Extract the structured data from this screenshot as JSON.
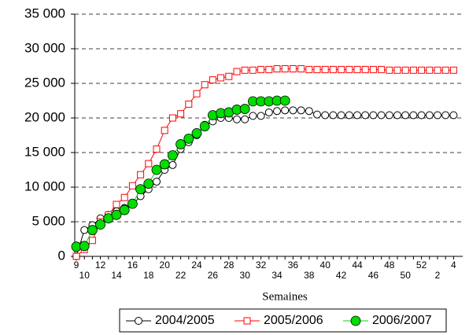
{
  "chart_data": {
    "type": "line",
    "x_label": "Semaines",
    "categories": [
      "9",
      "10",
      null,
      "12",
      null,
      "14",
      null,
      "16",
      null,
      "18",
      null,
      "20",
      null,
      "22",
      null,
      "24",
      null,
      "26",
      null,
      "28",
      null,
      "30",
      null,
      "32",
      null,
      "34",
      null,
      "36",
      null,
      "38",
      null,
      "40",
      null,
      "42",
      null,
      "44",
      null,
      "46",
      null,
      "48",
      null,
      "50",
      null,
      "52",
      null,
      "2",
      null,
      "4"
    ],
    "series": [
      {
        "name": "2004/2005",
        "color": "#000000",
        "marker": "circle",
        "values": [
          0,
          3800,
          4500,
          5500,
          6000,
          6500,
          7000,
          7500,
          8700,
          9700,
          10800,
          12500,
          13200,
          15500,
          16500,
          17500,
          19000,
          19500,
          20000,
          20000,
          19800,
          19800,
          20300,
          20300,
          20800,
          21000,
          21100,
          21100,
          21100,
          21000,
          20500,
          20400,
          20400,
          20400,
          20400,
          20400,
          20400,
          20400,
          20400,
          20400,
          20400,
          20400,
          20400,
          20400,
          20400,
          20400,
          20400,
          20400
        ]
      },
      {
        "name": "2005/2006",
        "color": "#ff0000",
        "marker": "square",
        "values": [
          0,
          1000,
          2300,
          5000,
          6000,
          7500,
          8500,
          10200,
          11800,
          13400,
          15500,
          18200,
          20000,
          20600,
          22000,
          23500,
          24800,
          25500,
          25800,
          26000,
          26700,
          26900,
          26900,
          27000,
          27000,
          27100,
          27100,
          27100,
          27100,
          27000,
          27000,
          27000,
          27000,
          27000,
          27000,
          27000,
          27000,
          27000,
          27000,
          26900,
          26900,
          26900,
          26900,
          26900,
          26900,
          26900,
          26900,
          26900
        ]
      },
      {
        "name": "2006/2007",
        "color": "#00dd00",
        "marker": "filled-circle",
        "values": [
          1400,
          1500,
          3800,
          4600,
          5500,
          6000,
          6700,
          7600,
          9700,
          10500,
          12500,
          13300,
          14600,
          16200,
          17000,
          17800,
          18800,
          20400,
          20700,
          20800,
          21200,
          21300,
          22400,
          22400,
          22400,
          22500,
          22500,
          null,
          null,
          null,
          null,
          null,
          null,
          null,
          null,
          null,
          null,
          null,
          null,
          null,
          null,
          null,
          null,
          null,
          null,
          null,
          null,
          null
        ]
      }
    ],
    "ylim": [
      0,
      35000
    ],
    "yticks": [
      0,
      {
        "value": 5000,
        "label": "5 000"
      },
      {
        "value": 10000,
        "label": "10 000"
      },
      {
        "value": 15000,
        "label": "15 000"
      },
      {
        "value": 20000,
        "label": "20 000"
      },
      {
        "value": 25000,
        "label": "25 000"
      },
      {
        "value": 30000,
        "label": "30 000"
      },
      {
        "value": 35000,
        "label": "35 000"
      }
    ],
    "grid": true,
    "legend": "bottom"
  }
}
